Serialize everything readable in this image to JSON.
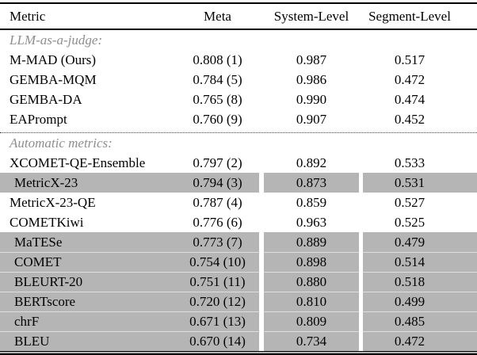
{
  "colors": {
    "highlight": "#b5b5b5",
    "section_label": "#8e8e8e",
    "rule": "#000000"
  },
  "table": {
    "headers": [
      "Metric",
      "Meta",
      "System-Level",
      "Segment-Level"
    ],
    "sections": [
      {
        "label": "LLM-as-a-judge:",
        "rows": [
          {
            "metric": "M-MAD (Ours)",
            "meta": "0.808 (1)",
            "system_level": "0.987",
            "segment_level": "0.517",
            "highlighted": false
          },
          {
            "metric": "GEMBA-MQM",
            "meta": "0.784 (5)",
            "system_level": "0.986",
            "segment_level": "0.472",
            "highlighted": false
          },
          {
            "metric": "GEMBA-DA",
            "meta": "0.765 (8)",
            "system_level": "0.990",
            "segment_level": "0.474",
            "highlighted": false
          },
          {
            "metric": "EAPrompt",
            "meta": "0.760 (9)",
            "system_level": "0.907",
            "segment_level": "0.452",
            "highlighted": false
          }
        ]
      },
      {
        "label": "Automatic metrics:",
        "rows": [
          {
            "metric": "XCOMET-QE-Ensemble",
            "meta": "0.797 (2)",
            "system_level": "0.892",
            "segment_level": "0.533",
            "highlighted": false
          },
          {
            "metric": "MetricX-23",
            "meta": "0.794 (3)",
            "system_level": "0.873",
            "segment_level": "0.531",
            "highlighted": true
          },
          {
            "metric": "MetricX-23-QE",
            "meta": "0.787 (4)",
            "system_level": "0.859",
            "segment_level": "0.527",
            "highlighted": false
          },
          {
            "metric": "COMETKiwi",
            "meta": "0.776 (6)",
            "system_level": "0.963",
            "segment_level": "0.525",
            "highlighted": false
          },
          {
            "metric": "MaTESe",
            "meta": "0.773 (7)",
            "system_level": "0.889",
            "segment_level": "0.479",
            "highlighted": true
          },
          {
            "metric": "COMET",
            "meta": "0.754 (10)",
            "system_level": "0.898",
            "segment_level": "0.514",
            "highlighted": true
          },
          {
            "metric": "BLEURT-20",
            "meta": "0.751 (11)",
            "system_level": "0.880",
            "segment_level": "0.518",
            "highlighted": true
          },
          {
            "metric": "BERTscore",
            "meta": "0.720 (12)",
            "system_level": "0.810",
            "segment_level": "0.499",
            "highlighted": true
          },
          {
            "metric": "chrF",
            "meta": "0.671 (13)",
            "system_level": "0.809",
            "segment_level": "0.485",
            "highlighted": true
          },
          {
            "metric": "BLEU",
            "meta": "0.670 (14)",
            "system_level": "0.734",
            "segment_level": "0.472",
            "highlighted": true
          }
        ]
      }
    ]
  }
}
